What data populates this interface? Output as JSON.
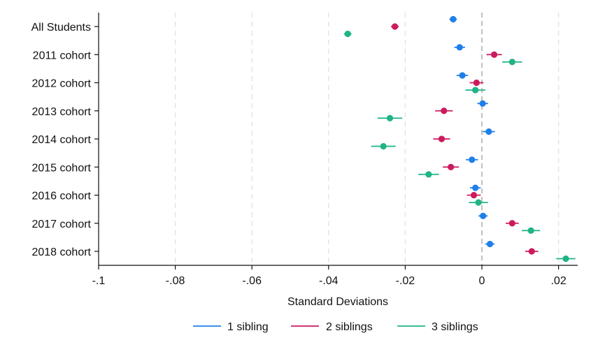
{
  "chart_data": {
    "type": "scatter",
    "orientation": "horizontal coefficient plot with confidence intervals",
    "categories": [
      "All Students",
      "2011 cohort",
      "2012 cohort",
      "2013 cohort",
      "2014 cohort",
      "2015 cohort",
      "2016 cohort",
      "2017 cohort",
      "2018 cohort"
    ],
    "xlabel": "Standard Deviations",
    "ylabel": "",
    "xlim": [
      -0.1,
      0.025
    ],
    "xticks": [
      -0.1,
      -0.08,
      -0.06,
      -0.04,
      -0.02,
      0,
      0.02
    ],
    "xtick_labels": [
      "-.1",
      "-.08",
      "-.06",
      "-.04",
      "-.02",
      "0",
      ".02"
    ],
    "grid": "vertical dashed light gray",
    "reference_line": {
      "x": 0,
      "style": "dashed gray"
    },
    "legend": {
      "placement": "bottom-center"
    },
    "series": [
      {
        "name": "1 sibling",
        "color": "#1f7fe8",
        "values": [
          -0.0075,
          -0.0058,
          -0.0051,
          0.0002,
          0.0018,
          -0.0026,
          -0.0017,
          0.0003,
          0.0021
        ],
        "ci_low": [
          -0.0085,
          -0.0072,
          -0.0066,
          -0.0012,
          0.0002,
          -0.0042,
          -0.0031,
          -0.0009,
          0.0009
        ],
        "ci_high": [
          -0.0065,
          -0.0044,
          -0.0036,
          0.0016,
          0.0034,
          -0.001,
          -0.0003,
          0.0015,
          0.0033
        ]
      },
      {
        "name": "2 siblings",
        "color": "#cc1a5e",
        "values": [
          -0.0227,
          0.0032,
          -0.0014,
          -0.0099,
          -0.0105,
          -0.0081,
          -0.0021,
          0.0079,
          0.013
        ],
        "ci_low": [
          -0.0237,
          0.0012,
          -0.0032,
          -0.0122,
          -0.0127,
          -0.0102,
          -0.0039,
          0.0062,
          0.0113
        ],
        "ci_high": [
          -0.0217,
          0.0052,
          0.0004,
          -0.0076,
          -0.0083,
          -0.006,
          -0.0003,
          0.0096,
          0.0147
        ]
      },
      {
        "name": "3 siblings",
        "color": "#1fb386",
        "values": [
          -0.035,
          0.0079,
          -0.0017,
          -0.024,
          -0.0257,
          -0.0139,
          -0.0009,
          0.0128,
          0.0219
        ],
        "ci_low": [
          -0.036,
          0.0053,
          -0.0043,
          -0.0272,
          -0.0289,
          -0.0166,
          -0.0034,
          0.0104,
          0.0194
        ],
        "ci_high": [
          -0.034,
          0.0105,
          0.0009,
          -0.0208,
          -0.0225,
          -0.0112,
          0.0016,
          0.0152,
          0.0244
        ]
      }
    ]
  }
}
